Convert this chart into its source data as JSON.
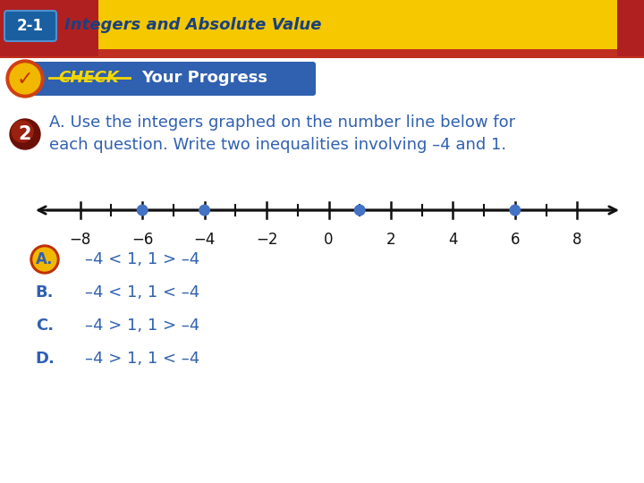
{
  "bg_color": "#ffffff",
  "header_bg_top": "#f5c800",
  "header_bg_bot": "#f0b800",
  "header_text": "Integers and Absolute Value",
  "header_badge": "2-1",
  "header_badge_bg": "#1a5fa0",
  "header_red_left": "#b02020",
  "check_banner_bg": "#3060b0",
  "check_banner_text": "Your Progress",
  "question_number": "2",
  "question_number_bg": "#8b1a0a",
  "question_text_line1": "A. Use the integers graphed on the number line below for",
  "question_text_line2": "each question. Write two inequalities involving –4 and 1.",
  "question_text_color": "#3060b0",
  "number_line_min": -9,
  "number_line_max": 9,
  "number_line_ticks": [
    -8,
    -6,
    -4,
    -2,
    0,
    2,
    4,
    6,
    8
  ],
  "number_line_dots": [
    -6,
    -4,
    1,
    6
  ],
  "dot_color": "#4472c4",
  "line_color": "#111111",
  "answers": [
    {
      "letter": "A",
      "text": "–4 < 1, 1 > –4",
      "correct": true
    },
    {
      "letter": "B",
      "text": "–4 < 1, 1 < –4",
      "correct": false
    },
    {
      "letter": "C",
      "text": "–4 > 1, 1 > –4",
      "correct": false
    },
    {
      "letter": "D",
      "text": "–4 > 1, 1 < –4",
      "correct": false
    }
  ],
  "text_color": "#3060b0",
  "correct_badge_outer": "#c03000",
  "correct_badge_inner": "#f0b800",
  "correct_badge_text": "#3060b0"
}
